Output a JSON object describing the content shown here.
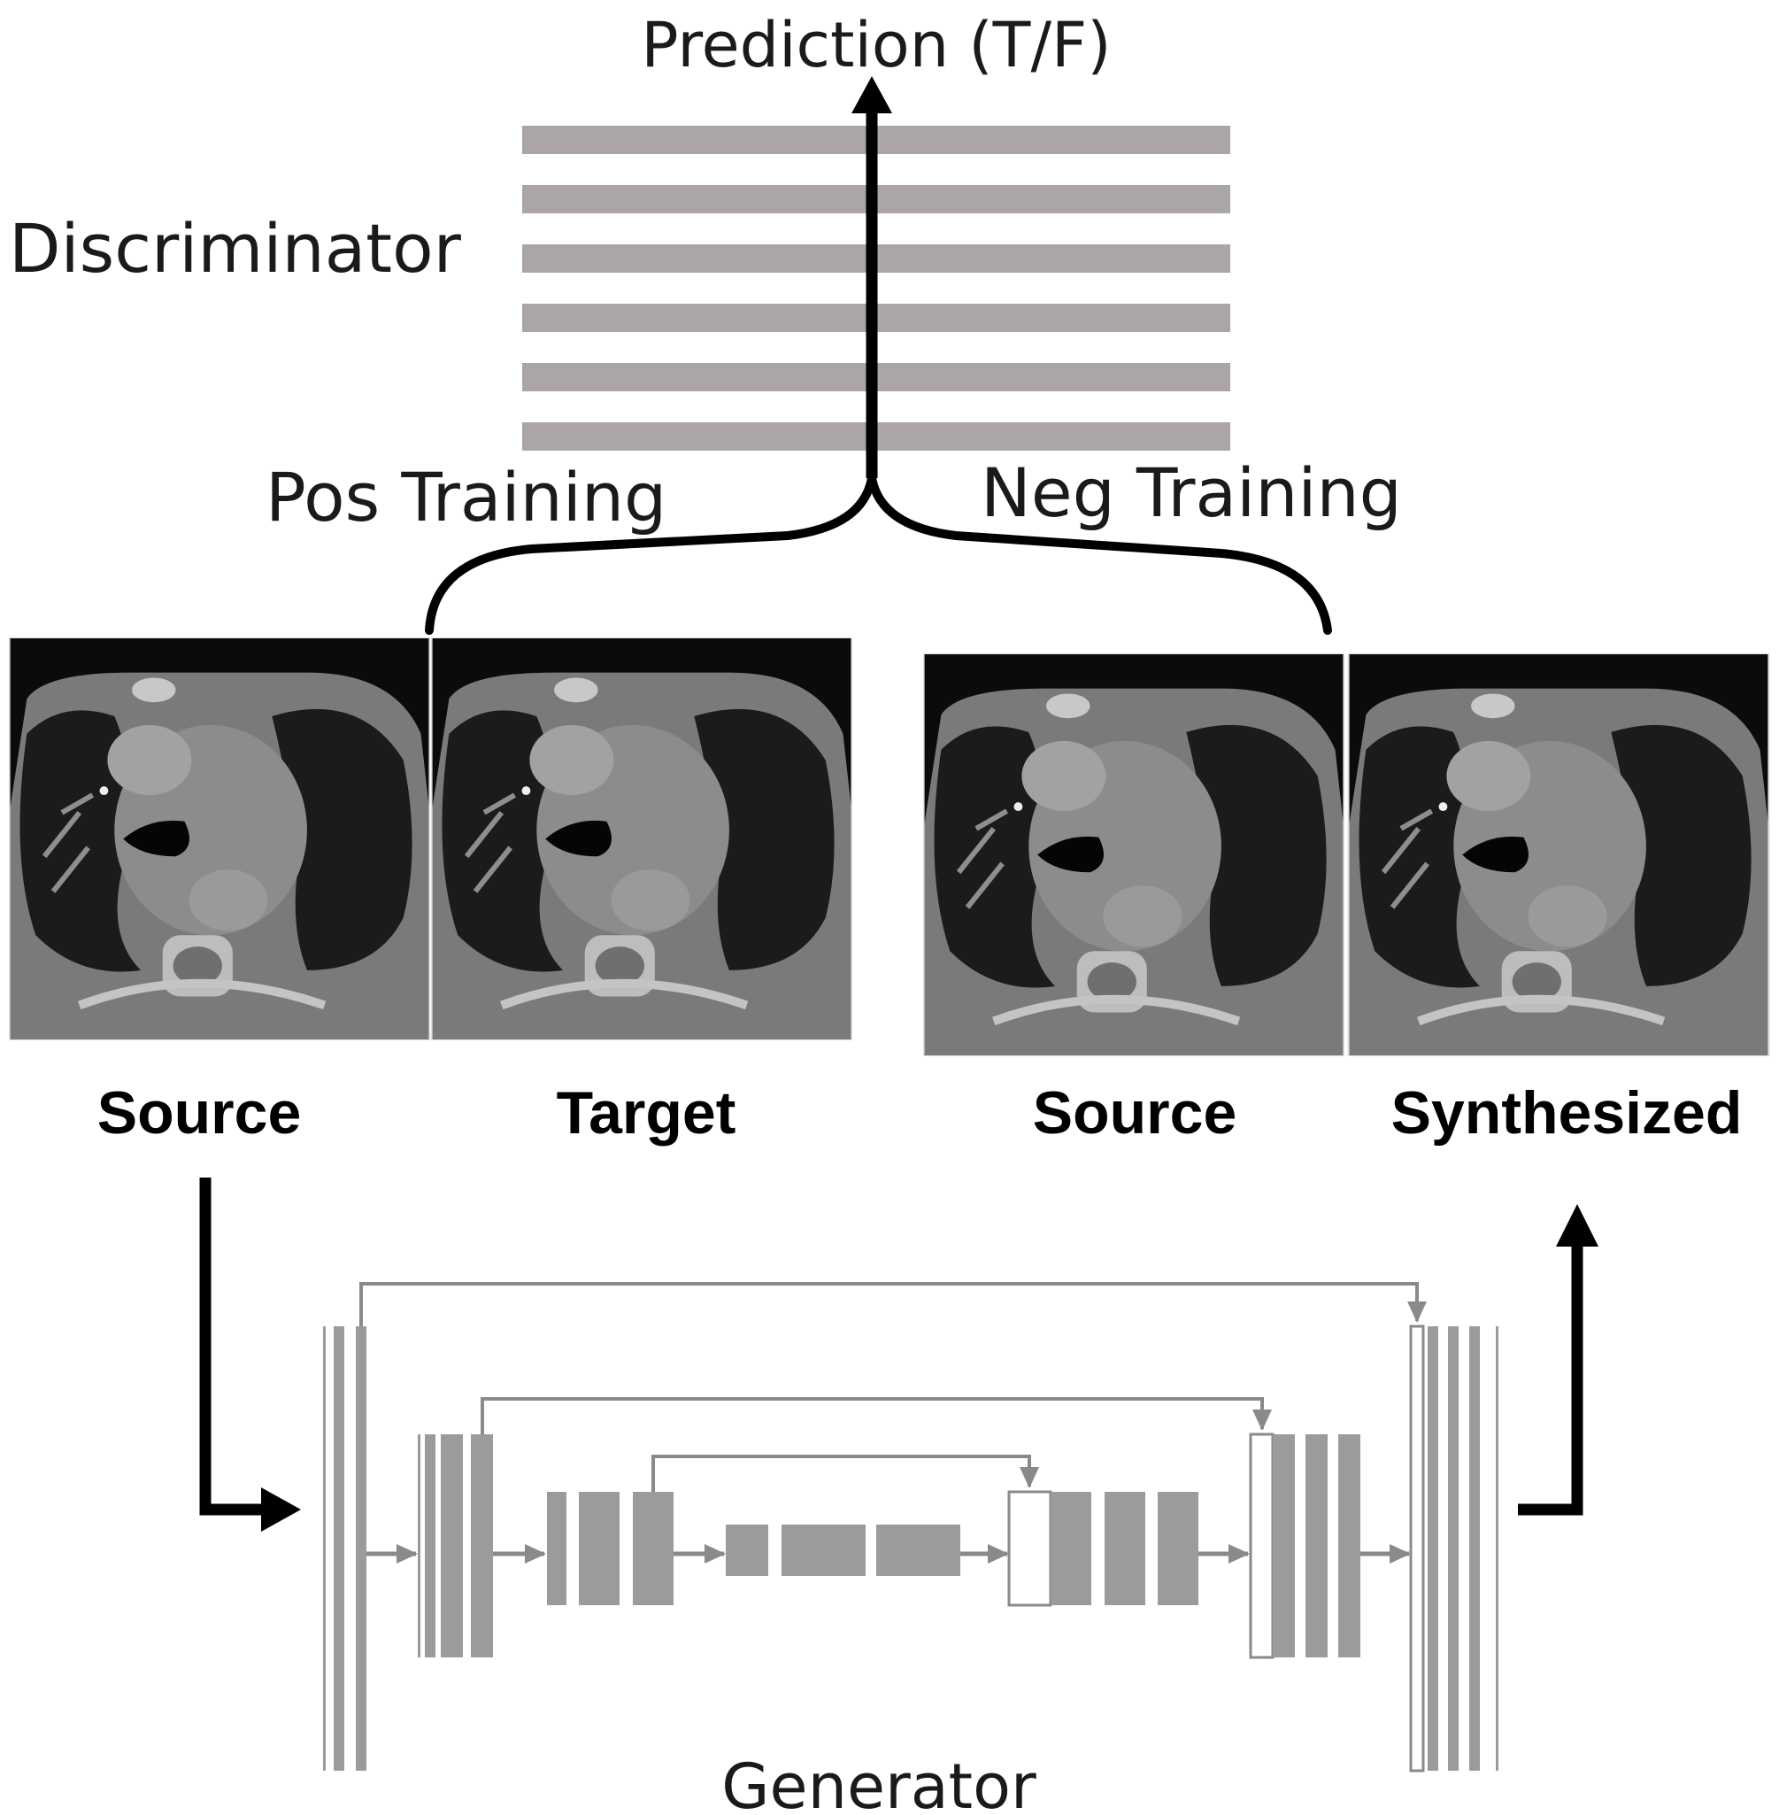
{
  "discriminator": {
    "title": "Discriminator",
    "output_label": "Prediction (T/F)",
    "pos_label": "Pos Training",
    "neg_label": "Neg Training",
    "layer_color": "#aba6a5"
  },
  "images": {
    "source_1": "Source",
    "target": "Target",
    "source_2": "Source",
    "synthesized": "Synthesized"
  },
  "generator": {
    "title": "Generator",
    "block_color": "#9b9b9b",
    "arrow_color": "#8a8a8a"
  }
}
